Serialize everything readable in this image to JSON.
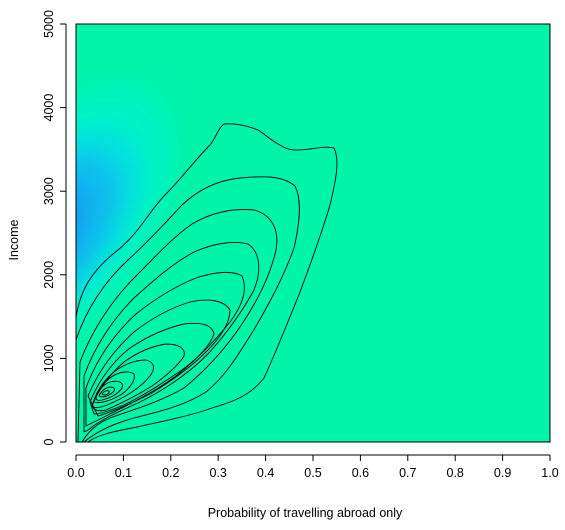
{
  "chart_data": {
    "type": "heatmap",
    "subtype": "2d-density-with-contours",
    "title": "",
    "xlabel": "Probability of travelling abroad only",
    "ylabel": "Income",
    "xlim": [
      0,
      1
    ],
    "ylim": [
      0,
      5000
    ],
    "x_ticks": [
      "0.0",
      "0.1",
      "0.2",
      "0.3",
      "0.4",
      "0.5",
      "0.6",
      "0.7",
      "0.8",
      "0.9",
      "1.0"
    ],
    "y_ticks": [
      "0",
      "1000",
      "2000",
      "3000",
      "4000",
      "5000"
    ],
    "colors": {
      "low_density": "#00f5a8",
      "mid_density": "#00e8ff",
      "high_density": "#1060e8",
      "peak_density": "#0010c0",
      "contour_line": "#000000"
    },
    "density_peak": {
      "x": 0.04,
      "y": 600
    },
    "contour_count": 13,
    "grid": false,
    "legend": "none"
  }
}
